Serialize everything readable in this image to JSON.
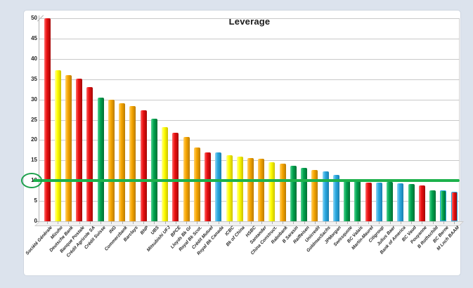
{
  "page": {
    "background_color": "#dce3ed",
    "card_color": "#ffffff"
  },
  "chart_data": {
    "type": "bar",
    "title": "Leverage",
    "xlabel": "",
    "ylabel": "",
    "ylim": [
      0,
      50
    ],
    "ytick_step": 5,
    "yticks": [
      0,
      5,
      10,
      15,
      20,
      25,
      30,
      35,
      40,
      45,
      50
    ],
    "grid": true,
    "legend": "none",
    "reference_line": {
      "value": 10,
      "color": "#1db14c",
      "circled_tick_label": "10",
      "ellipse_color": "#1da04c"
    },
    "palette": {
      "red": {
        "base": "#ea0f0f",
        "light": "#ff6a6a",
        "dark": "#a30808"
      },
      "yellow": {
        "base": "#ffff00",
        "light": "#ffffa0",
        "dark": "#c9c000"
      },
      "orange": {
        "base": "#f7a600",
        "light": "#ffd066",
        "dark": "#b97b00"
      },
      "green": {
        "base": "#00a44f",
        "light": "#55d494",
        "dark": "#006e34"
      },
      "blue": {
        "base": "#2aa9e0",
        "light": "#8ed6f4",
        "dark": "#1a7fae"
      }
    },
    "outline_color": "#2aa9e0",
    "bars": [
      {
        "label": "Société Générale",
        "value": 50.0,
        "color": "red",
        "outlined": false
      },
      {
        "label": "Mizuho",
        "value": 37.2,
        "color": "yellow",
        "outlined": false
      },
      {
        "label": "Deutsche Bank",
        "value": 36.0,
        "color": "orange",
        "outlined": false
      },
      {
        "label": "Banque Postale",
        "value": 35.2,
        "color": "red",
        "outlined": false
      },
      {
        "label": "Crédit Agricole SA",
        "value": 33.0,
        "color": "red",
        "outlined": false
      },
      {
        "label": "Crédit Suisse",
        "value": 30.5,
        "color": "green",
        "outlined": false
      },
      {
        "label": "ING",
        "value": 30.0,
        "color": "orange",
        "outlined": false
      },
      {
        "label": "Commerzbank",
        "value": 29.0,
        "color": "orange",
        "outlined": false
      },
      {
        "label": "Barclays",
        "value": 28.3,
        "color": "orange",
        "outlined": false
      },
      {
        "label": "BNP",
        "value": 27.4,
        "color": "red",
        "outlined": false
      },
      {
        "label": "UBS",
        "value": 25.3,
        "color": "green",
        "outlined": false
      },
      {
        "label": "Mitsubishi UFJ",
        "value": 23.2,
        "color": "yellow",
        "outlined": false
      },
      {
        "label": "BPCE",
        "value": 21.8,
        "color": "red",
        "outlined": false
      },
      {
        "label": "Lloyds Bk Gr",
        "value": 20.8,
        "color": "orange",
        "outlined": false
      },
      {
        "label": "Royal Bk Scot.",
        "value": 18.2,
        "color": "orange",
        "outlined": false
      },
      {
        "label": "Crédit Mutuel",
        "value": 17.0,
        "color": "red",
        "outlined": false
      },
      {
        "label": "Royal Bk Canada",
        "value": 17.0,
        "color": "blue",
        "outlined": false
      },
      {
        "label": "ICBC",
        "value": 16.2,
        "color": "yellow",
        "outlined": false
      },
      {
        "label": "Bk of China",
        "value": 15.9,
        "color": "yellow",
        "outlined": false
      },
      {
        "label": "HSBC",
        "value": 15.5,
        "color": "orange",
        "outlined": false
      },
      {
        "label": "Santander",
        "value": 15.4,
        "color": "orange",
        "outlined": false
      },
      {
        "label": "China Construct.",
        "value": 14.6,
        "color": "yellow",
        "outlined": false
      },
      {
        "label": "Rabobank",
        "value": 14.2,
        "color": "orange",
        "outlined": false
      },
      {
        "label": "B Sarasin",
        "value": 13.6,
        "color": "green",
        "outlined": false
      },
      {
        "label": "Raiffeisen",
        "value": 13.1,
        "color": "green",
        "outlined": false
      },
      {
        "label": "Unicredit",
        "value": 12.6,
        "color": "orange",
        "outlined": false
      },
      {
        "label": "GoldmanSachs",
        "value": 12.3,
        "color": "blue",
        "outlined": false
      },
      {
        "label": "JPMorgan",
        "value": 11.5,
        "color": "blue",
        "outlined": false
      },
      {
        "label": "Swissquote",
        "value": 10.4,
        "color": "green",
        "outlined": false
      },
      {
        "label": "BC Valais",
        "value": 10.2,
        "color": "green",
        "outlined": false
      },
      {
        "label": "Martin-Maurel",
        "value": 9.6,
        "color": "red",
        "outlined": false
      },
      {
        "label": "Citigroup",
        "value": 9.6,
        "color": "blue",
        "outlined": false
      },
      {
        "label": "Julius Baer",
        "value": 9.7,
        "color": "green",
        "outlined": false
      },
      {
        "label": "Bank of America",
        "value": 9.4,
        "color": "blue",
        "outlined": false
      },
      {
        "label": "BC Vaud",
        "value": 9.1,
        "color": "green",
        "outlined": false
      },
      {
        "label": "Pouyanne",
        "value": 8.8,
        "color": "red",
        "outlined": false
      },
      {
        "label": "B Rothschild",
        "value": 7.7,
        "color": "green",
        "outlined": false
      },
      {
        "label": "BC Berne",
        "value": 7.7,
        "color": "green",
        "outlined": true
      },
      {
        "label": "M Lnch BAAM",
        "value": 7.2,
        "color": "red",
        "outlined": true
      }
    ]
  }
}
